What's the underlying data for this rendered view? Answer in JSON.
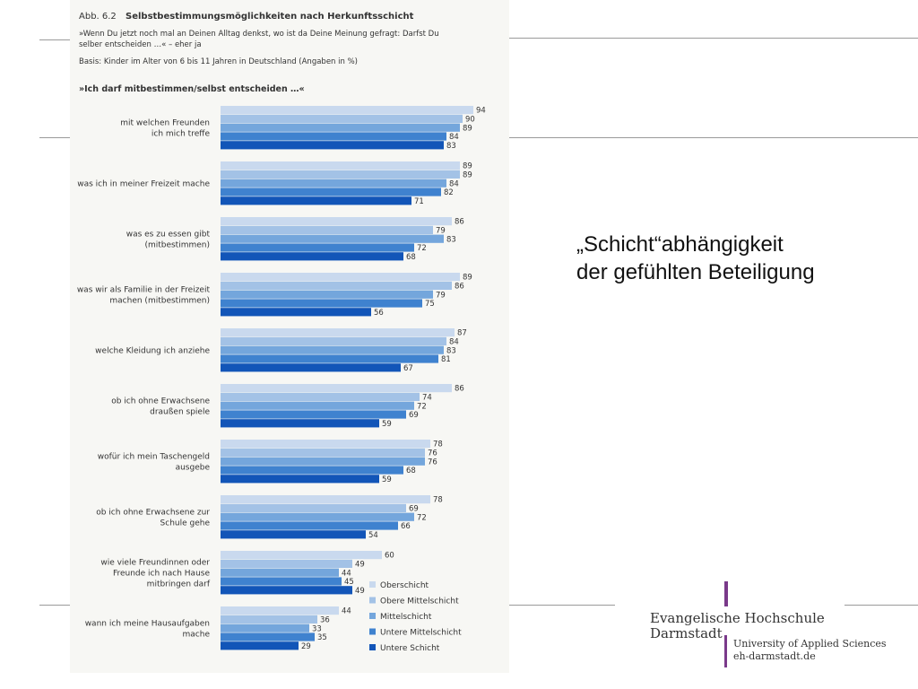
{
  "slide": {
    "title_line1": "„Schicht“abhängigkeit",
    "title_line2": "der gefühlten Beteiligung"
  },
  "logo": {
    "name_line1": "Evangelische Hochschule",
    "name_line2": "Darmstadt",
    "tagline": "University of Applied Sciences",
    "url": "eh-darmstadt.de",
    "accent_color": "#7a3a8a"
  },
  "figure": {
    "label": "Abb. 6.2",
    "title": "Selbstbestimmungsmöglichkeiten nach Herkunftsschicht",
    "question": "»Wenn Du jetzt noch mal an Deinen Alltag denkst, wo ist da Deine Meinung gefragt: Darfst Du selber entscheiden …« – eher ja",
    "basis": "Basis: Kinder im Alter von 6 bis 11 Jahren in Deutschland (Angaben in %)",
    "header": "»Ich darf mitbestimmen/selbst entscheiden …«"
  },
  "chart_data": {
    "type": "bar",
    "orientation": "horizontal",
    "categories": [
      [
        "mit welchen Freunden",
        "ich mich treffe"
      ],
      [
        "was ich in meiner Freizeit mache"
      ],
      [
        "was es zu essen gibt",
        "(mitbestimmen)"
      ],
      [
        "was wir als Familie in der Freizeit",
        "machen (mitbestimmen)"
      ],
      [
        "welche Kleidung ich anziehe"
      ],
      [
        "ob ich ohne Erwachsene",
        "draußen spiele"
      ],
      [
        "wofür ich mein Taschengeld",
        "ausgebe"
      ],
      [
        "ob ich ohne Erwachsene zur",
        "Schule gehe"
      ],
      [
        "wie viele Freundinnen oder",
        "Freunde ich nach Hause",
        "mitbringen darf"
      ],
      [
        "wann ich meine Hausaufgaben",
        "mache"
      ]
    ],
    "series": [
      {
        "name": "Oberschicht",
        "color": "#c9d9ee",
        "values": [
          94,
          89,
          86,
          89,
          87,
          86,
          78,
          78,
          60,
          44
        ]
      },
      {
        "name": "Obere Mittelschicht",
        "color": "#a3c2e6",
        "values": [
          90,
          89,
          79,
          86,
          84,
          74,
          76,
          69,
          49,
          36
        ]
      },
      {
        "name": "Mittelschicht",
        "color": "#74a6dc",
        "values": [
          89,
          84,
          83,
          79,
          83,
          72,
          76,
          72,
          44,
          33
        ]
      },
      {
        "name": "Untere Mittelschicht",
        "color": "#3f82cf",
        "values": [
          84,
          82,
          72,
          75,
          81,
          69,
          68,
          66,
          45,
          35
        ]
      },
      {
        "name": "Untere Schicht",
        "color": "#1255b8",
        "values": [
          83,
          71,
          68,
          56,
          67,
          59,
          59,
          54,
          49,
          29
        ]
      }
    ],
    "xlim": [
      0,
      100
    ],
    "legend_position": "bottom-right",
    "grid": false
  }
}
